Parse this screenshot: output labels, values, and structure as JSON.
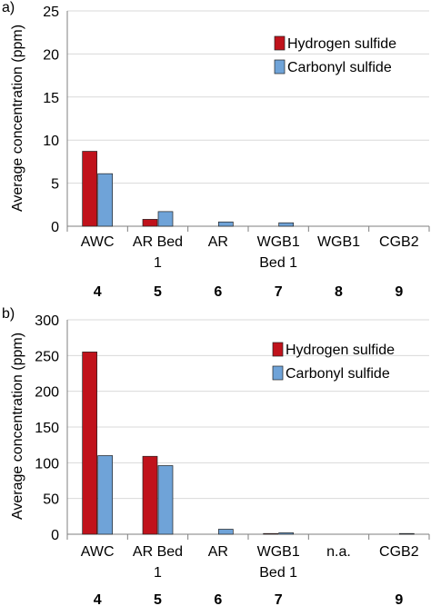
{
  "colors": {
    "h2s": "#c0121b",
    "cos": "#6fa3d8",
    "grid": "#d9d9d9",
    "axis": "#7f7f7f"
  },
  "chart_data": [
    {
      "type": "bar",
      "panel_label": "a)",
      "ylabel": "Average concentration (ppm)",
      "ylim": [
        0,
        25
      ],
      "yticks": [
        0,
        5,
        10,
        15,
        20,
        25
      ],
      "grid": true,
      "legend_position": "top-right",
      "categories": [
        [
          "AWC"
        ],
        [
          "AR Bed",
          "1"
        ],
        [
          "AR"
        ],
        [
          "WGB1",
          "Bed 1"
        ],
        [
          "WGB1"
        ],
        [
          "CGB2"
        ]
      ],
      "sample_numbers": [
        "4",
        "5",
        "6",
        "7",
        "8",
        "9"
      ],
      "series": [
        {
          "name": "Hydrogen sulfide",
          "color_key": "h2s",
          "values": [
            8.7,
            0.8,
            0.0,
            0.0,
            0.0,
            0.0
          ]
        },
        {
          "name": "Carbonyl sulfide",
          "color_key": "cos",
          "values": [
            6.1,
            1.7,
            0.5,
            0.4,
            0.0,
            0.0
          ]
        }
      ]
    },
    {
      "type": "bar",
      "panel_label": "b)",
      "ylabel": "Average concentration (ppm)",
      "ylim": [
        0,
        300
      ],
      "yticks": [
        0,
        50,
        100,
        150,
        200,
        250,
        300
      ],
      "grid": true,
      "legend_position": "top-right",
      "categories": [
        [
          "AWC"
        ],
        [
          "AR Bed",
          "1"
        ],
        [
          "AR"
        ],
        [
          "WGB1",
          "Bed 1"
        ],
        [
          "n.a."
        ],
        [
          "CGB2"
        ]
      ],
      "sample_numbers": [
        "4",
        "5",
        "6",
        "7",
        "",
        "9"
      ],
      "series": [
        {
          "name": "Hydrogen sulfide",
          "color_key": "h2s",
          "values": [
            255,
            109,
            0,
            1,
            0,
            0
          ]
        },
        {
          "name": "Carbonyl sulfide",
          "color_key": "cos",
          "values": [
            110,
            96,
            7,
            2,
            0,
            1
          ]
        }
      ]
    }
  ]
}
